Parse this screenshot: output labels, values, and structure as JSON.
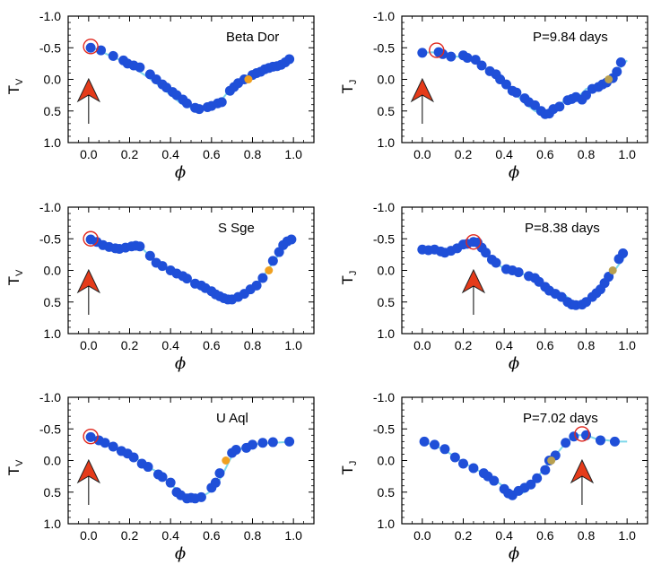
{
  "chart_data": [
    {
      "type": "scatter",
      "title": "Beta Dor",
      "xlabel": "ϕ",
      "ylabel": "T",
      "ylabel_sub": "V",
      "xlim": [
        -0.1,
        1.1
      ],
      "ylim": [
        1.0,
        -1.0
      ],
      "y_inverted": true,
      "xticks": [
        "0.0",
        "0.2",
        "0.4",
        "0.6",
        "0.8",
        "1.0"
      ],
      "yticks": [
        "-1.0",
        "-0.5",
        "0.0",
        "0.5",
        "1.0"
      ],
      "series": [
        {
          "type": "line",
          "color": "#7fd8ea",
          "x": [
            0.0,
            0.05,
            0.1,
            0.15,
            0.2,
            0.25,
            0.3,
            0.35,
            0.4,
            0.45,
            0.5,
            0.55,
            0.6,
            0.65,
            0.7,
            0.75,
            0.8,
            0.85,
            0.9,
            0.95,
            1.0
          ],
          "y": [
            -0.52,
            -0.46,
            -0.38,
            -0.31,
            -0.22,
            -0.12,
            -0.01,
            0.11,
            0.25,
            0.38,
            0.45,
            0.48,
            0.43,
            0.32,
            0.12,
            -0.03,
            -0.09,
            -0.18,
            -0.22,
            -0.25,
            -0.33
          ]
        },
        {
          "type": "scatter",
          "color": "#1f4fd8",
          "x": [
            0.01,
            0.06,
            0.12,
            0.17,
            0.19,
            0.22,
            0.25,
            0.3,
            0.33,
            0.36,
            0.38,
            0.41,
            0.43,
            0.46,
            0.48,
            0.52,
            0.54,
            0.58,
            0.6,
            0.63,
            0.65,
            0.69,
            0.71,
            0.73,
            0.76,
            0.8,
            0.82,
            0.84,
            0.86,
            0.88,
            0.9,
            0.92,
            0.94,
            0.96,
            0.98
          ],
          "y": [
            -0.5,
            -0.46,
            -0.37,
            -0.3,
            -0.25,
            -0.22,
            -0.19,
            -0.08,
            0.0,
            0.08,
            0.13,
            0.2,
            0.25,
            0.32,
            0.38,
            0.45,
            0.47,
            0.44,
            0.42,
            0.38,
            0.36,
            0.18,
            0.12,
            0.06,
            0.0,
            -0.07,
            -0.1,
            -0.12,
            -0.16,
            -0.18,
            -0.2,
            -0.21,
            -0.23,
            -0.27,
            -0.32
          ]
        },
        {
          "type": "highlight",
          "color": "#f0a020",
          "x": [
            0.78
          ],
          "y": [
            0.0
          ]
        }
      ],
      "circle": {
        "x": 0.01,
        "y": -0.52
      },
      "arrow": {
        "x": 0.0
      }
    },
    {
      "type": "scatter",
      "title": "P=9.84 days",
      "xlabel": "ϕ",
      "ylabel": "T",
      "ylabel_sub": "J",
      "xlim": [
        -0.1,
        1.1
      ],
      "ylim": [
        1.0,
        -1.0
      ],
      "y_inverted": true,
      "xticks": [
        "0.0",
        "0.2",
        "0.4",
        "0.6",
        "0.8",
        "1.0"
      ],
      "yticks": [
        "-1.0",
        "-0.5",
        "0.0",
        "0.5",
        "1.0"
      ],
      "series": [
        {
          "type": "line",
          "color": "#7fd8ea",
          "x": [
            0.0,
            0.05,
            0.1,
            0.15,
            0.2,
            0.25,
            0.3,
            0.35,
            0.4,
            0.45,
            0.5,
            0.55,
            0.6,
            0.65,
            0.7,
            0.75,
            0.8,
            0.85,
            0.9,
            0.95,
            1.0
          ],
          "y": [
            -0.42,
            -0.43,
            -0.37,
            -0.36,
            -0.36,
            -0.3,
            -0.19,
            -0.08,
            0.1,
            0.21,
            0.38,
            0.5,
            0.55,
            0.45,
            0.32,
            0.32,
            0.15,
            0.1,
            0.0,
            -0.12,
            -0.3
          ]
        },
        {
          "type": "scatter",
          "color": "#1f4fd8",
          "x": [
            0.0,
            0.08,
            0.1,
            0.14,
            0.2,
            0.22,
            0.26,
            0.29,
            0.33,
            0.36,
            0.38,
            0.41,
            0.44,
            0.46,
            0.5,
            0.52,
            0.55,
            0.58,
            0.6,
            0.62,
            0.64,
            0.67,
            0.71,
            0.73,
            0.75,
            0.78,
            0.8,
            0.83,
            0.86,
            0.88,
            0.9,
            0.93,
            0.95,
            0.97
          ],
          "y": [
            -0.42,
            -0.43,
            -0.4,
            -0.36,
            -0.38,
            -0.34,
            -0.31,
            -0.22,
            -0.13,
            -0.08,
            0.0,
            0.08,
            0.18,
            0.21,
            0.3,
            0.36,
            0.41,
            0.5,
            0.55,
            0.54,
            0.47,
            0.43,
            0.33,
            0.31,
            0.28,
            0.32,
            0.25,
            0.15,
            0.12,
            0.08,
            0.05,
            -0.02,
            -0.12,
            -0.27
          ]
        },
        {
          "type": "highlight",
          "color": "#b8a050",
          "x": [
            0.91
          ],
          "y": [
            0.0
          ]
        }
      ],
      "circle": {
        "x": 0.07,
        "y": -0.46
      },
      "arrow": {
        "x": 0.0
      }
    },
    {
      "type": "scatter",
      "title": "S Sge",
      "xlabel": "ϕ",
      "ylabel": "T",
      "ylabel_sub": "V",
      "xlim": [
        -0.1,
        1.1
      ],
      "ylim": [
        1.0,
        -1.0
      ],
      "y_inverted": true,
      "xticks": [
        "0.0",
        "0.2",
        "0.4",
        "0.6",
        "0.8",
        "1.0"
      ],
      "yticks": [
        "-1.0",
        "-0.5",
        "0.0",
        "0.5",
        "1.0"
      ],
      "series": [
        {
          "type": "line",
          "color": "#7fd8ea",
          "x": [
            0.0,
            0.05,
            0.1,
            0.15,
            0.2,
            0.25,
            0.3,
            0.35,
            0.4,
            0.45,
            0.5,
            0.55,
            0.6,
            0.65,
            0.7,
            0.75,
            0.8,
            0.85,
            0.9,
            0.95,
            1.0
          ],
          "y": [
            -0.5,
            -0.42,
            -0.36,
            -0.33,
            -0.35,
            -0.39,
            -0.22,
            -0.08,
            0.0,
            0.09,
            0.18,
            0.29,
            0.38,
            0.45,
            0.46,
            0.4,
            0.27,
            0.1,
            -0.12,
            -0.35,
            -0.5
          ]
        },
        {
          "type": "scatter",
          "color": "#1f4fd8",
          "x": [
            0.01,
            0.04,
            0.07,
            0.1,
            0.13,
            0.15,
            0.18,
            0.21,
            0.23,
            0.25,
            0.3,
            0.33,
            0.36,
            0.4,
            0.43,
            0.46,
            0.48,
            0.52,
            0.55,
            0.57,
            0.6,
            0.62,
            0.64,
            0.66,
            0.68,
            0.7,
            0.73,
            0.76,
            0.79,
            0.82,
            0.85,
            0.9,
            0.93,
            0.95,
            0.97,
            0.99
          ],
          "y": [
            -0.49,
            -0.45,
            -0.4,
            -0.37,
            -0.35,
            -0.34,
            -0.36,
            -0.38,
            -0.39,
            -0.38,
            -0.23,
            -0.12,
            -0.07,
            0.0,
            0.05,
            0.09,
            0.13,
            0.21,
            0.24,
            0.28,
            0.33,
            0.38,
            0.41,
            0.44,
            0.46,
            0.46,
            0.42,
            0.37,
            0.3,
            0.24,
            0.12,
            -0.15,
            -0.29,
            -0.4,
            -0.46,
            -0.49
          ]
        },
        {
          "type": "highlight",
          "color": "#f0a020",
          "x": [
            0.88
          ],
          "y": [
            0.0
          ]
        }
      ],
      "circle": {
        "x": 0.01,
        "y": -0.5
      },
      "arrow": {
        "x": 0.0
      }
    },
    {
      "type": "scatter",
      "title": "P=8.38 days",
      "xlabel": "ϕ",
      "ylabel": "T",
      "ylabel_sub": "J",
      "xlim": [
        -0.1,
        1.1
      ],
      "ylim": [
        1.0,
        -1.0
      ],
      "y_inverted": true,
      "xticks": [
        "0.0",
        "0.2",
        "0.4",
        "0.6",
        "0.8",
        "1.0"
      ],
      "yticks": [
        "-1.0",
        "-0.5",
        "0.0",
        "0.5",
        "1.0"
      ],
      "series": [
        {
          "type": "line",
          "color": "#7fd8ea",
          "x": [
            0.0,
            0.05,
            0.1,
            0.15,
            0.2,
            0.25,
            0.3,
            0.35,
            0.4,
            0.45,
            0.5,
            0.55,
            0.6,
            0.65,
            0.7,
            0.75,
            0.8,
            0.85,
            0.9,
            0.95,
            1.0
          ],
          "y": [
            -0.32,
            -0.32,
            -0.28,
            -0.33,
            -0.4,
            -0.45,
            -0.3,
            -0.13,
            -0.03,
            -0.01,
            0.07,
            0.12,
            0.22,
            0.32,
            0.4,
            0.55,
            0.5,
            0.36,
            0.2,
            -0.05,
            -0.27
          ]
        },
        {
          "type": "scatter",
          "color": "#1f4fd8",
          "x": [
            0.0,
            0.03,
            0.06,
            0.09,
            0.11,
            0.14,
            0.17,
            0.2,
            0.22,
            0.25,
            0.27,
            0.29,
            0.31,
            0.34,
            0.36,
            0.41,
            0.44,
            0.47,
            0.52,
            0.55,
            0.57,
            0.6,
            0.62,
            0.65,
            0.68,
            0.71,
            0.73,
            0.75,
            0.78,
            0.8,
            0.83,
            0.85,
            0.87,
            0.89,
            0.91,
            0.96,
            0.98
          ],
          "y": [
            -0.33,
            -0.32,
            -0.33,
            -0.3,
            -0.28,
            -0.31,
            -0.35,
            -0.41,
            -0.42,
            -0.45,
            -0.44,
            -0.36,
            -0.28,
            -0.17,
            -0.12,
            -0.02,
            0.0,
            0.03,
            0.09,
            0.12,
            0.18,
            0.26,
            0.32,
            0.37,
            0.42,
            0.5,
            0.54,
            0.55,
            0.54,
            0.5,
            0.42,
            0.36,
            0.3,
            0.2,
            0.1,
            -0.18,
            -0.27
          ]
        },
        {
          "type": "highlight",
          "color": "#b8a050",
          "x": [
            0.93
          ],
          "y": [
            0.0
          ]
        }
      ],
      "circle": {
        "x": 0.25,
        "y": -0.45
      },
      "arrow": {
        "x": 0.25
      }
    },
    {
      "type": "scatter",
      "title": "U Aql",
      "xlabel": "ϕ",
      "ylabel": "T",
      "ylabel_sub": "V",
      "xlim": [
        -0.1,
        1.1
      ],
      "ylim": [
        1.0,
        -1.0
      ],
      "y_inverted": true,
      "xticks": [
        "0.0",
        "0.2",
        "0.4",
        "0.6",
        "0.8",
        "1.0"
      ],
      "yticks": [
        "-1.0",
        "-0.5",
        "0.0",
        "0.5",
        "1.0"
      ],
      "series": [
        {
          "type": "line",
          "color": "#7fd8ea",
          "x": [
            0.0,
            0.05,
            0.1,
            0.15,
            0.2,
            0.25,
            0.3,
            0.35,
            0.4,
            0.45,
            0.5,
            0.55,
            0.6,
            0.65,
            0.7,
            0.75,
            0.8,
            0.85,
            0.9,
            0.95,
            1.0
          ],
          "y": [
            -0.38,
            -0.33,
            -0.25,
            -0.18,
            -0.1,
            0.0,
            0.12,
            0.2,
            0.38,
            0.5,
            0.6,
            0.58,
            0.48,
            0.25,
            -0.08,
            -0.2,
            -0.25,
            -0.27,
            -0.28,
            -0.29,
            -0.3
          ]
        },
        {
          "type": "scatter",
          "color": "#1f4fd8",
          "x": [
            0.01,
            0.05,
            0.08,
            0.12,
            0.16,
            0.19,
            0.22,
            0.26,
            0.29,
            0.34,
            0.36,
            0.4,
            0.43,
            0.45,
            0.48,
            0.5,
            0.52,
            0.55,
            0.6,
            0.62,
            0.64,
            0.7,
            0.72,
            0.77,
            0.8,
            0.85,
            0.9,
            0.98
          ],
          "y": [
            -0.37,
            -0.32,
            -0.28,
            -0.22,
            -0.15,
            -0.11,
            -0.05,
            0.05,
            0.1,
            0.22,
            0.26,
            0.35,
            0.5,
            0.55,
            0.6,
            0.59,
            0.6,
            0.58,
            0.43,
            0.35,
            0.2,
            -0.12,
            -0.17,
            -0.2,
            -0.25,
            -0.28,
            -0.29,
            -0.3
          ]
        },
        {
          "type": "highlight",
          "color": "#f0a020",
          "x": [
            0.67
          ],
          "y": [
            0.0
          ]
        }
      ],
      "circle": {
        "x": 0.01,
        "y": -0.38
      },
      "arrow": {
        "x": 0.0
      }
    },
    {
      "type": "scatter",
      "title": "P=7.02 days",
      "xlabel": "ϕ",
      "ylabel": "T",
      "ylabel_sub": "J",
      "xlim": [
        -0.1,
        1.1
      ],
      "ylim": [
        1.0,
        -1.0
      ],
      "y_inverted": true,
      "xticks": [
        "0.0",
        "0.2",
        "0.4",
        "0.6",
        "0.8",
        "1.0"
      ],
      "yticks": [
        "-1.0",
        "-0.5",
        "0.0",
        "0.5",
        "1.0"
      ],
      "series": [
        {
          "type": "line",
          "color": "#7fd8ea",
          "x": [
            0.0,
            0.05,
            0.1,
            0.15,
            0.2,
            0.25,
            0.3,
            0.35,
            0.4,
            0.45,
            0.5,
            0.55,
            0.6,
            0.65,
            0.7,
            0.75,
            0.8,
            0.85,
            0.9,
            0.95,
            1.0
          ],
          "y": [
            -0.3,
            -0.25,
            -0.18,
            -0.08,
            0.03,
            0.12,
            0.2,
            0.3,
            0.42,
            0.55,
            0.5,
            0.32,
            0.1,
            -0.08,
            -0.28,
            -0.4,
            -0.4,
            -0.34,
            -0.32,
            -0.3,
            -0.3
          ]
        },
        {
          "type": "scatter",
          "color": "#1f4fd8",
          "x": [
            0.01,
            0.06,
            0.11,
            0.16,
            0.2,
            0.25,
            0.3,
            0.32,
            0.35,
            0.4,
            0.42,
            0.44,
            0.47,
            0.5,
            0.53,
            0.56,
            0.6,
            0.62,
            0.65,
            0.7,
            0.74,
            0.8,
            0.87,
            0.94
          ],
          "y": [
            -0.3,
            -0.25,
            -0.18,
            -0.05,
            0.05,
            0.12,
            0.2,
            0.25,
            0.32,
            0.45,
            0.52,
            0.55,
            0.48,
            0.43,
            0.38,
            0.28,
            0.15,
            0.0,
            -0.08,
            -0.28,
            -0.38,
            -0.4,
            -0.32,
            -0.3
          ]
        },
        {
          "type": "highlight",
          "color": "#b8a050",
          "x": [
            0.63
          ],
          "y": [
            0.0
          ]
        }
      ],
      "circle": {
        "x": 0.78,
        "y": -0.42
      },
      "arrow": {
        "x": 0.78
      }
    }
  ]
}
